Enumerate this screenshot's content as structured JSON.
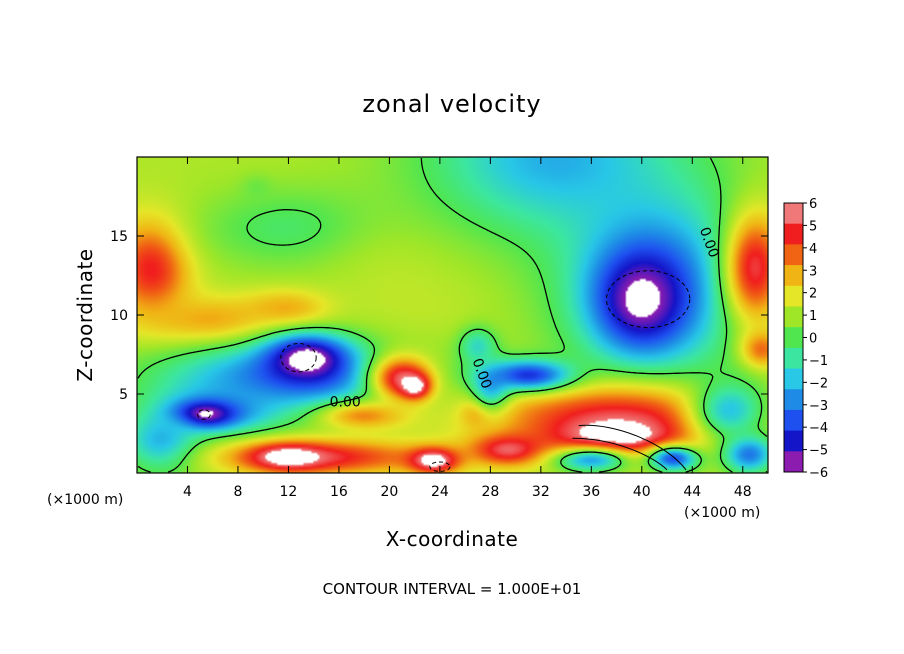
{
  "chart_data": {
    "type": "heatmap",
    "title": "zonal velocity",
    "xlabel": "X-coordinate",
    "ylabel": "Z-coordinate",
    "x_unit": "(×1000 m)",
    "z_unit": "(×1000 m)",
    "xlim": [
      0,
      50
    ],
    "ylim": [
      0,
      20
    ],
    "x_ticks": [
      4,
      8,
      12,
      16,
      20,
      24,
      28,
      32,
      36,
      40,
      44,
      48
    ],
    "y_ticks": [
      5,
      10,
      15
    ],
    "colorbar": {
      "min": -6,
      "max": 6,
      "ticks": [
        6,
        5,
        4,
        3,
        2,
        1,
        0,
        -1,
        -2,
        -3,
        -4,
        -5,
        -6
      ],
      "colors": [
        "#8c1cb0",
        "#1414c8",
        "#1e50f0",
        "#1e8ce6",
        "#28c8e6",
        "#3ce6a0",
        "#50e650",
        "#a0e628",
        "#e6e628",
        "#f0b414",
        "#f06414",
        "#f01e1e",
        "#f07878"
      ]
    },
    "contour_labels": [
      "0.00",
      "0.00",
      "0.00",
      "0.00"
    ],
    "footer": "CONTOUR INTERVAL = 1.000E+01",
    "field": {
      "background": 1.2,
      "blobs": [
        {
          "x": 1.2,
          "z": 13.0,
          "rx": 3.0,
          "ry": 3.0,
          "v": 5.2
        },
        {
          "x": 6,
          "z": 9.5,
          "rx": 5.5,
          "ry": 1.6,
          "v": 3.5
        },
        {
          "x": 12,
          "z": 10.3,
          "rx": 3.5,
          "ry": 1.3,
          "v": 3.5
        },
        {
          "x": 12,
          "z": 15.5,
          "rx": 7,
          "ry": 2.5,
          "v": -0.3
        },
        {
          "x": 22,
          "z": 11,
          "rx": 6,
          "ry": 5,
          "v": 1.5
        },
        {
          "x": 33,
          "z": 20,
          "rx": 10,
          "ry": 5,
          "v": -2.4
        },
        {
          "x": 41,
          "z": 12,
          "rx": 7,
          "ry": 6,
          "v": -3.4
        },
        {
          "x": 40,
          "z": 11,
          "rx": 3.5,
          "ry": 3.0,
          "v": -6.5
        },
        {
          "x": 49,
          "z": 13,
          "rx": 2.4,
          "ry": 3.5,
          "v": 5.3
        },
        {
          "x": 49.5,
          "z": 7.8,
          "rx": 1.6,
          "ry": 1.2,
          "v": 4
        },
        {
          "x": 12,
          "z": 6,
          "rx": 10,
          "ry": 2.3,
          "v": -3.4
        },
        {
          "x": 13.5,
          "z": 7.2,
          "rx": 3.3,
          "ry": 1.5,
          "v": -6.8
        },
        {
          "x": 6.5,
          "z": 4,
          "rx": 4.5,
          "ry": 1.5,
          "v": -3.2
        },
        {
          "x": 5.2,
          "z": 3.7,
          "rx": 2.3,
          "ry": 0.8,
          "v": -6.8
        },
        {
          "x": 2,
          "z": 2,
          "rx": 3,
          "ry": 2,
          "v": -2.5
        },
        {
          "x": 21,
          "z": 6,
          "rx": 2.5,
          "ry": 1.5,
          "v": 5.5
        },
        {
          "x": 22,
          "z": 5.5,
          "rx": 1.2,
          "ry": 0.8,
          "v": 7
        },
        {
          "x": 15,
          "z": 1.0,
          "rx": 8,
          "ry": 1.1,
          "v": 5
        },
        {
          "x": 12,
          "z": 1.0,
          "rx": 3,
          "ry": 0.8,
          "v": 7
        },
        {
          "x": 23.5,
          "z": 0.8,
          "rx": 2,
          "ry": 0.8,
          "v": 7
        },
        {
          "x": 18,
          "z": 3.6,
          "rx": 3.5,
          "ry": 0.9,
          "v": 3.5
        },
        {
          "x": 29.5,
          "z": 1.5,
          "rx": 3,
          "ry": 1.0,
          "v": 6
        },
        {
          "x": 38,
          "z": 3.5,
          "rx": 10,
          "ry": 2.2,
          "v": 5
        },
        {
          "x": 38,
          "z": 2.3,
          "rx": 5,
          "ry": 1.3,
          "v": 7
        },
        {
          "x": 36,
          "z": 0.8,
          "rx": 3,
          "ry": 0.8,
          "v": -2.5
        },
        {
          "x": 42.5,
          "z": 0.9,
          "rx": 2,
          "ry": 0.8,
          "v": -4
        },
        {
          "x": 48.5,
          "z": 1.2,
          "rx": 2,
          "ry": 1.2,
          "v": -3.5
        },
        {
          "x": 27,
          "z": 3.8,
          "rx": 1.2,
          "ry": 0.9,
          "v": 3.5
        },
        {
          "x": 28,
          "z": 5.5,
          "rx": 1.5,
          "ry": 1.5,
          "v": -2
        },
        {
          "x": 31,
          "z": 6.2,
          "rx": 3.5,
          "ry": 1.0,
          "v": -4.5
        },
        {
          "x": 27,
          "z": 8,
          "rx": 1.5,
          "ry": 1.2,
          "v": -1.5
        },
        {
          "x": 47,
          "z": 4,
          "rx": 3,
          "ry": 2,
          "v": -2
        },
        {
          "x": 9.5,
          "z": 18,
          "rx": 1.2,
          "ry": 0.8,
          "v": 0.3
        }
      ]
    }
  }
}
